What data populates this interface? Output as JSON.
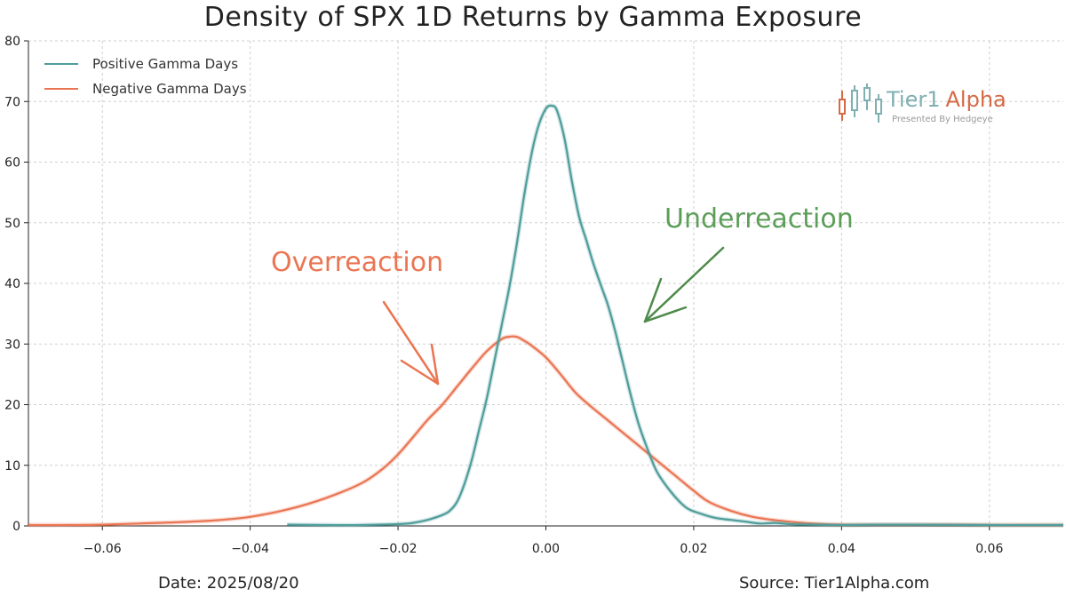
{
  "header": {
    "title": "Density of SPX 1D Returns by Gamma Exposure"
  },
  "footer": {
    "date": "Date: 2025/08/20",
    "source": "Source: Tier1Alpha.com"
  },
  "branding": {
    "name_part1": "Tier1",
    "name_part2": "Alpha",
    "tagline": "Presented By Hedgeye"
  },
  "annotations": {
    "overreaction": "Overreaction",
    "underreaction": "Underreaction"
  },
  "colors": {
    "positive": "#4f9d9b",
    "negative": "#ea7552",
    "overreaction": "#ea7552",
    "underreaction": "#5c9e58",
    "grid": "#cfcfcf",
    "brand_teal": "#7fb0b2",
    "brand_orange": "#d56a45"
  },
  "chart_data": {
    "type": "line",
    "title": "Density of SPX 1D Returns by Gamma Exposure",
    "xlabel": "",
    "ylabel": "",
    "xlim": [
      -0.07,
      0.07
    ],
    "ylim": [
      0,
      80
    ],
    "x_ticks": [
      -0.06,
      -0.04,
      -0.02,
      0.0,
      0.02,
      0.04,
      0.06
    ],
    "x_tick_labels": [
      "−0.06",
      "−0.04",
      "−0.02",
      "0.00",
      "0.02",
      "0.04",
      "0.06"
    ],
    "y_ticks": [
      0,
      10,
      20,
      30,
      40,
      50,
      60,
      70,
      80
    ],
    "y_tick_labels": [
      "0",
      "10",
      "20",
      "30",
      "40",
      "50",
      "60",
      "70",
      "80"
    ],
    "grid": true,
    "legend_position": "top-left",
    "series": [
      {
        "name": "Positive Gamma Days",
        "color": "#4f9d9b",
        "x": [
          -0.035,
          -0.03,
          -0.025,
          -0.02,
          -0.018,
          -0.016,
          -0.014,
          -0.013,
          -0.012,
          -0.011,
          -0.01,
          -0.009,
          -0.008,
          -0.007,
          -0.006,
          -0.005,
          -0.004,
          -0.003,
          -0.002,
          -0.001,
          0.0,
          0.0008,
          0.0015,
          0.0025,
          0.0035,
          0.0045,
          0.0055,
          0.0065,
          0.0075,
          0.0085,
          0.0095,
          0.0105,
          0.0115,
          0.0125,
          0.0135,
          0.015,
          0.017,
          0.019,
          0.021,
          0.023,
          0.025,
          0.027,
          0.029,
          0.031,
          0.033,
          0.036,
          0.04,
          0.045,
          0.05,
          0.06,
          0.07
        ],
        "y": [
          0.2,
          0.1,
          0.1,
          0.3,
          0.5,
          1.0,
          1.8,
          2.5,
          4.0,
          7.0,
          11.0,
          16.0,
          21.0,
          27.0,
          33.0,
          39.0,
          46.0,
          54.0,
          61.0,
          66.0,
          68.8,
          69.3,
          68.5,
          64.0,
          57.0,
          51.0,
          47.0,
          43.0,
          39.5,
          36.0,
          31.5,
          26.5,
          21.5,
          17.0,
          13.5,
          9.0,
          5.5,
          3.0,
          2.0,
          1.3,
          1.0,
          0.7,
          0.4,
          0.5,
          0.3,
          0.2,
          0.1,
          0.2,
          0.2,
          0.1,
          0.1
        ]
      },
      {
        "name": "Negative Gamma Days",
        "color": "#ea7552",
        "x": [
          -0.07,
          -0.065,
          -0.06,
          -0.055,
          -0.05,
          -0.045,
          -0.04,
          -0.035,
          -0.03,
          -0.025,
          -0.022,
          -0.02,
          -0.018,
          -0.016,
          -0.014,
          -0.012,
          -0.01,
          -0.008,
          -0.006,
          -0.005,
          -0.004,
          -0.003,
          -0.002,
          0.0,
          0.002,
          0.004,
          0.006,
          0.008,
          0.01,
          0.012,
          0.014,
          0.016,
          0.018,
          0.02,
          0.022,
          0.025,
          0.028,
          0.032,
          0.036,
          0.04,
          0.045,
          0.05,
          0.055,
          0.06,
          0.065,
          0.07
        ],
        "y": [
          0.0,
          0.1,
          0.2,
          0.4,
          0.6,
          0.9,
          1.5,
          2.7,
          4.5,
          7.0,
          9.5,
          11.8,
          14.6,
          17.5,
          20.0,
          23.0,
          26.0,
          28.8,
          30.8,
          31.2,
          31.2,
          30.6,
          29.8,
          27.8,
          25.0,
          22.0,
          19.8,
          17.8,
          15.8,
          13.8,
          11.8,
          9.8,
          7.8,
          5.8,
          4.0,
          2.5,
          1.5,
          0.8,
          0.4,
          0.2,
          0.2,
          0.2,
          0.2,
          0.1,
          0.1,
          0.1
        ]
      }
    ]
  }
}
